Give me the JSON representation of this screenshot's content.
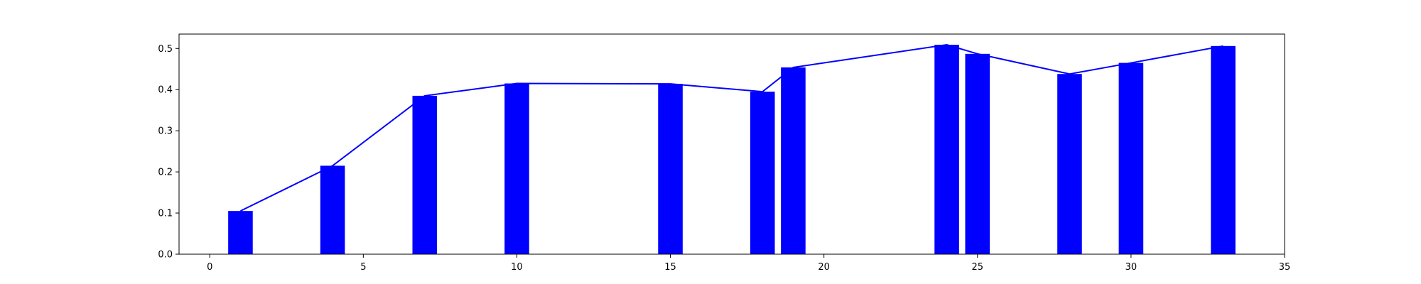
{
  "chart_data": {
    "type": "bar",
    "title": "",
    "xlabel": "",
    "ylabel": "",
    "xlim": [
      -1,
      35
    ],
    "ylim": [
      0,
      0.535
    ],
    "grid": false,
    "legend": "none",
    "colors": {
      "bars": "#0000ff",
      "line": "#0000ff",
      "axes": "#000000",
      "background": "#ffffff"
    },
    "x": [
      1,
      4,
      7,
      10,
      15,
      18,
      19,
      24,
      25,
      28,
      30,
      33
    ],
    "series": [
      {
        "type": "bar",
        "values": [
          0.105,
          0.215,
          0.385,
          0.415,
          0.414,
          0.395,
          0.454,
          0.509,
          0.487,
          0.438,
          0.465,
          0.506
        ]
      },
      {
        "type": "line",
        "values": [
          0.105,
          0.215,
          0.385,
          0.415,
          0.414,
          0.395,
          0.454,
          0.509,
          0.487,
          0.438,
          0.465,
          0.506
        ]
      }
    ],
    "x_ticks": [
      0,
      5,
      10,
      15,
      20,
      25,
      30,
      35
    ],
    "x_tick_labels": [
      "0",
      "5",
      "10",
      "15",
      "20",
      "25",
      "30",
      "35"
    ],
    "y_ticks": [
      0.0,
      0.1,
      0.2,
      0.3,
      0.4,
      0.5
    ],
    "y_tick_labels": [
      "0.0",
      "0.1",
      "0.2",
      "0.3",
      "0.4",
      "0.5"
    ],
    "bar_width": 0.8
  }
}
